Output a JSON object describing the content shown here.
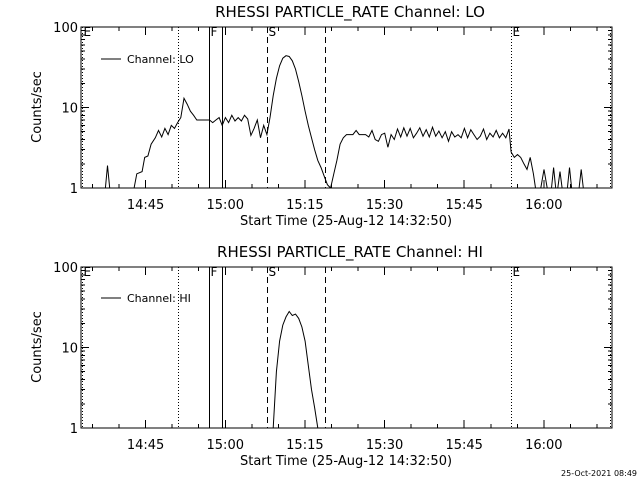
{
  "footer_timestamp": "25-Oct-2021 08:49",
  "chart_data": [
    {
      "type": "line",
      "title": "RHESSI PARTICLE_RATE Channel: LO",
      "xlabel": "Start Time (25-Aug-12 14:32:50)",
      "ylabel": "Counts/sec",
      "yscale": "log",
      "ylim": [
        1,
        100
      ],
      "y_ticks": [
        "1",
        "10",
        "100"
      ],
      "x_ticks": [
        "14:45",
        "15:00",
        "15:15",
        "15:30",
        "15:45",
        "16:00"
      ],
      "xlim_minutes_from_start": [
        0,
        100
      ],
      "legend": {
        "label": "Channel: LO",
        "position": "top-left"
      },
      "markers": [
        {
          "label": "E",
          "minute": 0.2,
          "style": "dotted"
        },
        {
          "label": "",
          "minute": 18.2,
          "style": "dotted"
        },
        {
          "label": "F",
          "minute": 24.1,
          "style": "solid"
        },
        {
          "label": "",
          "minute": 26.5,
          "style": "solid"
        },
        {
          "label": "S",
          "minute": 35.0,
          "style": "dashed"
        },
        {
          "label": "",
          "minute": 46.0,
          "style": "dashed"
        },
        {
          "label": "E",
          "minute": 81.0,
          "style": "dotted"
        },
        {
          "label": "",
          "minute": 99.6,
          "style": "dotted"
        }
      ],
      "series": [
        {
          "segments": [
            {
              "x": [
                4.6,
                5.0,
                5.4
              ],
              "y": [
                1,
                1.9,
                1
              ]
            },
            {
              "x": [
                8.0,
                10.0,
                10.5,
                11.5,
                12.0,
                12.6,
                13.2,
                14.0,
                14.6,
                15.2,
                15.8,
                16.4,
                17.0,
                17.6,
                18.2,
                18.8,
                19.4,
                20.0,
                20.6,
                21.2,
                21.8,
                22.4,
                23.0,
                23.6,
                24.2,
                24.8,
                25.4,
                26.0,
                26.6,
                27.2,
                27.8,
                28.4,
                29.0,
                29.6,
                30.2,
                30.8,
                31.4,
                32.0,
                32.6,
                33.2,
                33.8,
                34.4,
                35.0,
                35.6,
                36.2,
                36.8,
                37.4,
                38.0,
                38.6,
                39.2,
                39.8,
                40.4,
                41.0,
                41.6,
                42.2,
                42.8,
                43.4,
                44.0,
                44.6,
                45.2,
                45.8,
                46.4,
                47.0
              ],
              "y": [
                1,
                1,
                1.5,
                1.6,
                2.4,
                2.5,
                3.5,
                4.2,
                5.2,
                4.3,
                5.5,
                4.6,
                6.0,
                5.5,
                6.5,
                7.5,
                13,
                11,
                9,
                8,
                7,
                7,
                7,
                7,
                7,
                6.5,
                7,
                7.5,
                6,
                7.5,
                6.5,
                8,
                6.8,
                7.5,
                6.8,
                8,
                7.2,
                4.5,
                5.5,
                7,
                4.2,
                6,
                4.6,
                7.5,
                14,
                23,
                33,
                41,
                44,
                43,
                38,
                30,
                21,
                14,
                9,
                6,
                4.2,
                3,
                2.2,
                1.8,
                1.4,
                1.1,
                1
              ]
            },
            {
              "x": [
                47.0,
                47.6,
                48.2,
                48.8,
                49.4,
                50.0,
                50.6,
                51.2,
                51.8,
                52.4,
                53.0,
                53.6,
                54.2,
                54.8,
                55.4,
                56.0,
                56.6,
                57.2,
                57.8,
                58.4,
                59.0,
                59.6,
                60.2,
                60.8,
                61.4,
                62.0,
                62.6,
                63.2,
                63.8,
                64.4,
                65.0,
                65.6,
                66.2,
                66.8,
                67.4,
                68.0,
                68.6,
                69.2,
                69.8,
                70.4,
                71.0,
                71.6,
                72.2,
                72.8,
                73.4,
                74.0,
                74.6,
                75.2,
                75.8,
                76.4,
                77.0,
                77.6,
                78.2,
                78.8,
                79.4,
                80.0,
                80.6,
                81.0,
                81.6,
                82.2,
                82.8,
                83.4,
                84.0,
                84.6,
                85.2,
                85.6
              ],
              "y": [
                1,
                1.5,
                2.2,
                3.5,
                4.2,
                4.6,
                4.6,
                4.6,
                5.2,
                4.6,
                4.6,
                4.6,
                4.3,
                5.2,
                4.0,
                3.8,
                4.6,
                4.8,
                3.2,
                4.6,
                4.0,
                5.4,
                4.3,
                5.6,
                4.4,
                5.5,
                4.2,
                4.8,
                5.6,
                4.4,
                5.3,
                4.3,
                5.7,
                4.4,
                5.1,
                4.2,
                5.0,
                3.8,
                5.0,
                4.3,
                4.6,
                4.2,
                5.5,
                4.2,
                5.3,
                4.6,
                4.0,
                4.4,
                5.4,
                4.0,
                4.8,
                4.3,
                5.2,
                4.2,
                4.8,
                4.2,
                5.4,
                2.8,
                2.4,
                2.6,
                2.4,
                2.0,
                1.7,
                2.4,
                1.5,
                1
              ]
            },
            {
              "x": [
                86.6,
                87.2,
                87.8
              ],
              "y": [
                1,
                1.7,
                1
              ]
            },
            {
              "x": [
                88.6,
                89.0,
                89.4
              ],
              "y": [
                1,
                1.8,
                1
              ]
            },
            {
              "x": [
                89.8,
                90.2,
                90.6
              ],
              "y": [
                1,
                1.6,
                1
              ]
            },
            {
              "x": [
                91.6,
                92.0,
                92.4
              ],
              "y": [
                1,
                1.8,
                1
              ]
            },
            {
              "x": [
                93.8,
                94.2,
                94.6
              ],
              "y": [
                1,
                1.7,
                1
              ]
            }
          ]
        }
      ]
    },
    {
      "type": "line",
      "title": "RHESSI PARTICLE_RATE Channel: HI",
      "xlabel": "Start Time (25-Aug-12 14:32:50)",
      "ylabel": "Counts/sec",
      "yscale": "log",
      "ylim": [
        1,
        100
      ],
      "y_ticks": [
        "1",
        "10",
        "100"
      ],
      "x_ticks": [
        "14:45",
        "15:00",
        "15:15",
        "15:30",
        "15:45",
        "16:00"
      ],
      "xlim_minutes_from_start": [
        0,
        100
      ],
      "legend": {
        "label": "Channel: HI",
        "position": "top-left"
      },
      "markers": [
        {
          "label": "E",
          "minute": 0.2,
          "style": "dotted"
        },
        {
          "label": "",
          "minute": 18.2,
          "style": "dotted"
        },
        {
          "label": "F",
          "minute": 24.1,
          "style": "solid"
        },
        {
          "label": "",
          "minute": 26.5,
          "style": "solid"
        },
        {
          "label": "S",
          "minute": 35.0,
          "style": "dashed"
        },
        {
          "label": "",
          "minute": 46.0,
          "style": "dashed"
        },
        {
          "label": "E",
          "minute": 81.0,
          "style": "dotted"
        },
        {
          "label": "",
          "minute": 99.6,
          "style": "dotted"
        }
      ],
      "series": [
        {
          "segments": [
            {
              "x": [
                36.2,
                36.8,
                37.4,
                38.0,
                38.6,
                39.2,
                39.8,
                40.4,
                41.0,
                41.6,
                42.2,
                42.8,
                43.4,
                44.0,
                44.6
              ],
              "y": [
                1,
                5,
                12,
                19,
                24,
                28,
                25,
                26,
                23,
                18,
                12,
                6,
                3,
                1.8,
                1
              ]
            }
          ]
        }
      ]
    }
  ]
}
